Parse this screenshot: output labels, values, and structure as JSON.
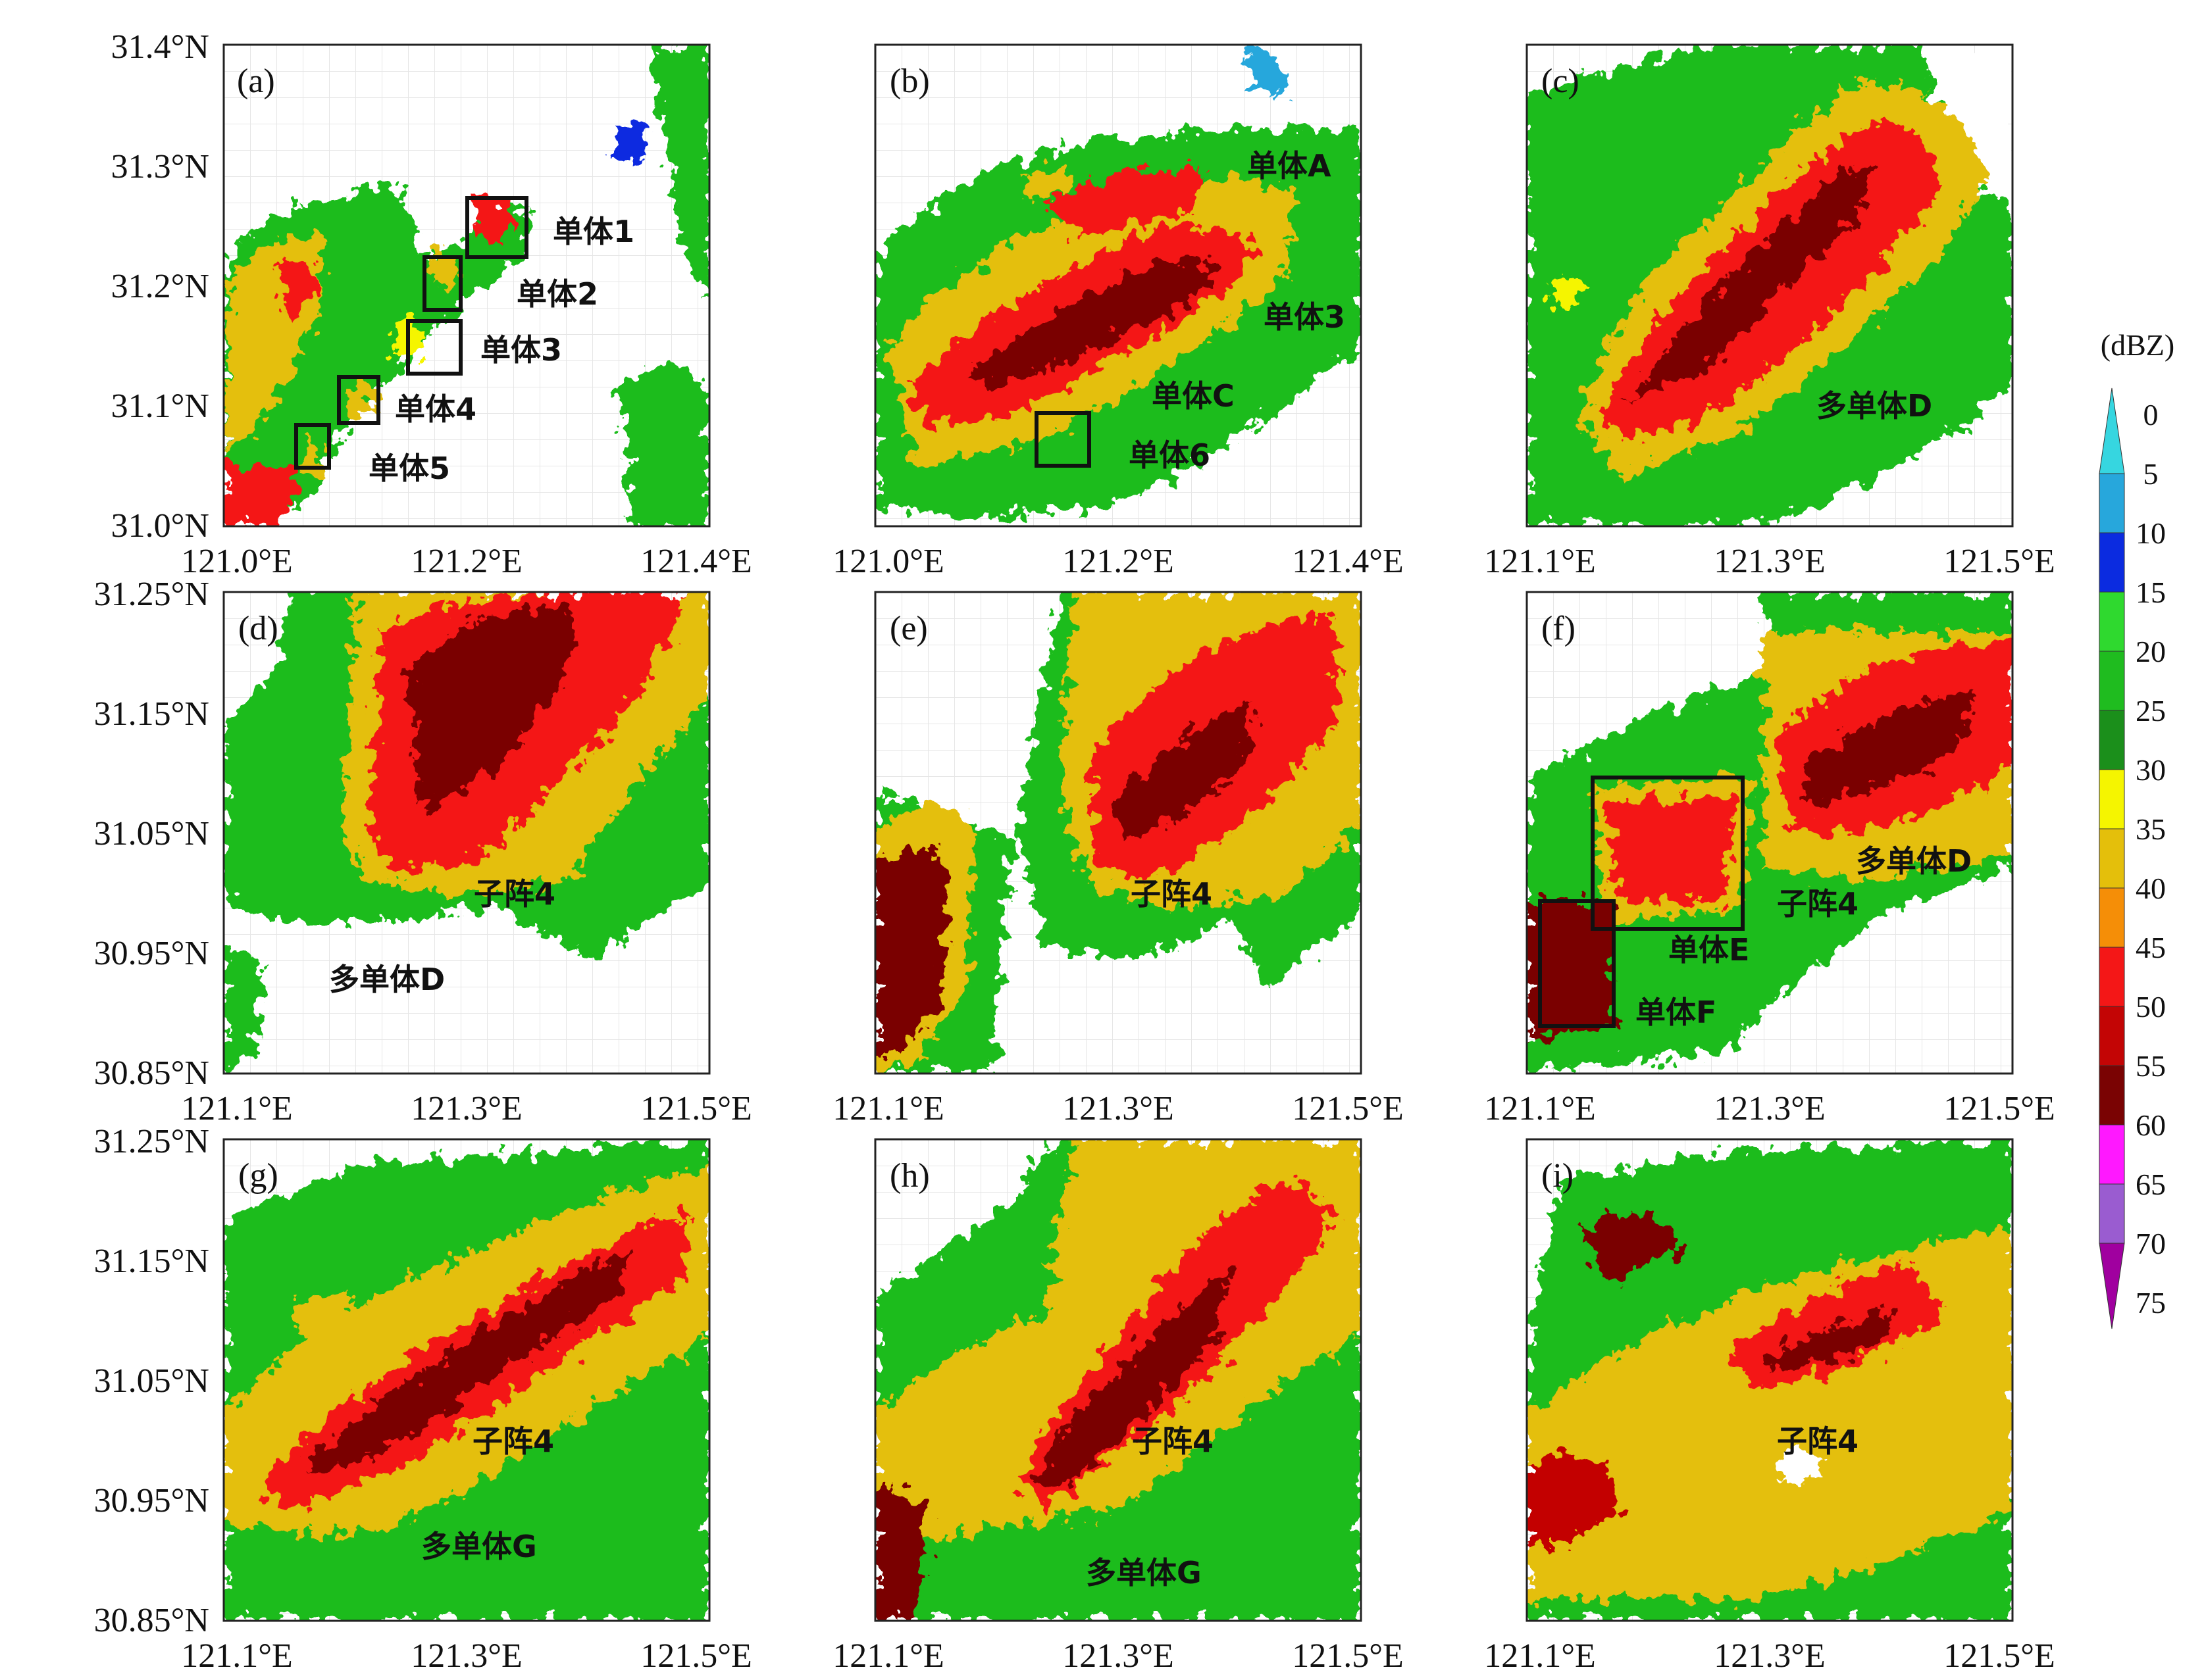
{
  "colorbar": {
    "unit": "(dBZ)",
    "levels": [
      "0",
      "5",
      "10",
      "15",
      "20",
      "25",
      "30",
      "35",
      "40",
      "45",
      "50",
      "55",
      "60",
      "65",
      "70",
      "75"
    ],
    "colors": [
      "#36d6e0",
      "#27a7dc",
      "#0b2be0",
      "#2fd92f",
      "#1fbc1f",
      "#1b8f1b",
      "#f5f500",
      "#e4bf0b",
      "#f58e07",
      "#f41717",
      "#c30505",
      "#7a0303",
      "#ff18ff",
      "#9a5cd0",
      "#a0009f"
    ]
  },
  "axes": {
    "lon_row1_ac": [
      "121.0°E",
      "121.2°E",
      "121.4°E"
    ],
    "lon_other": [
      "121.1°E",
      "121.3°E",
      "121.5°E"
    ],
    "lat_row1": [
      "31.4°N",
      "31.3°N",
      "31.2°N",
      "31.1°N",
      "31.0°N"
    ],
    "lat_rows23": [
      "31.25°N",
      "31.15°N",
      "31.05°N",
      "30.95°N",
      "30.85°N"
    ]
  },
  "panels": [
    {
      "label": "(a)",
      "annotations": [
        "单体1",
        "单体2",
        "单体3",
        "单体4",
        "单体5"
      ]
    },
    {
      "label": "(b)",
      "annotations": [
        "单体A",
        "单体3",
        "单体C",
        "单体6"
      ]
    },
    {
      "label": "(c)",
      "annotations": [
        "多单体D"
      ]
    },
    {
      "label": "(d)",
      "annotations": [
        "子阵4",
        "多单体D"
      ]
    },
    {
      "label": "(e)",
      "annotations": [
        "子阵4"
      ]
    },
    {
      "label": "(f)",
      "annotations": [
        "多单体D",
        "子阵4",
        "单体E",
        "单体F"
      ]
    },
    {
      "label": "(g)",
      "annotations": [
        "子阵4",
        "多单体G"
      ]
    },
    {
      "label": "(h)",
      "annotations": [
        "子阵4",
        "多单体G"
      ]
    },
    {
      "label": "(i)",
      "annotations": [
        "子阵4"
      ]
    }
  ]
}
